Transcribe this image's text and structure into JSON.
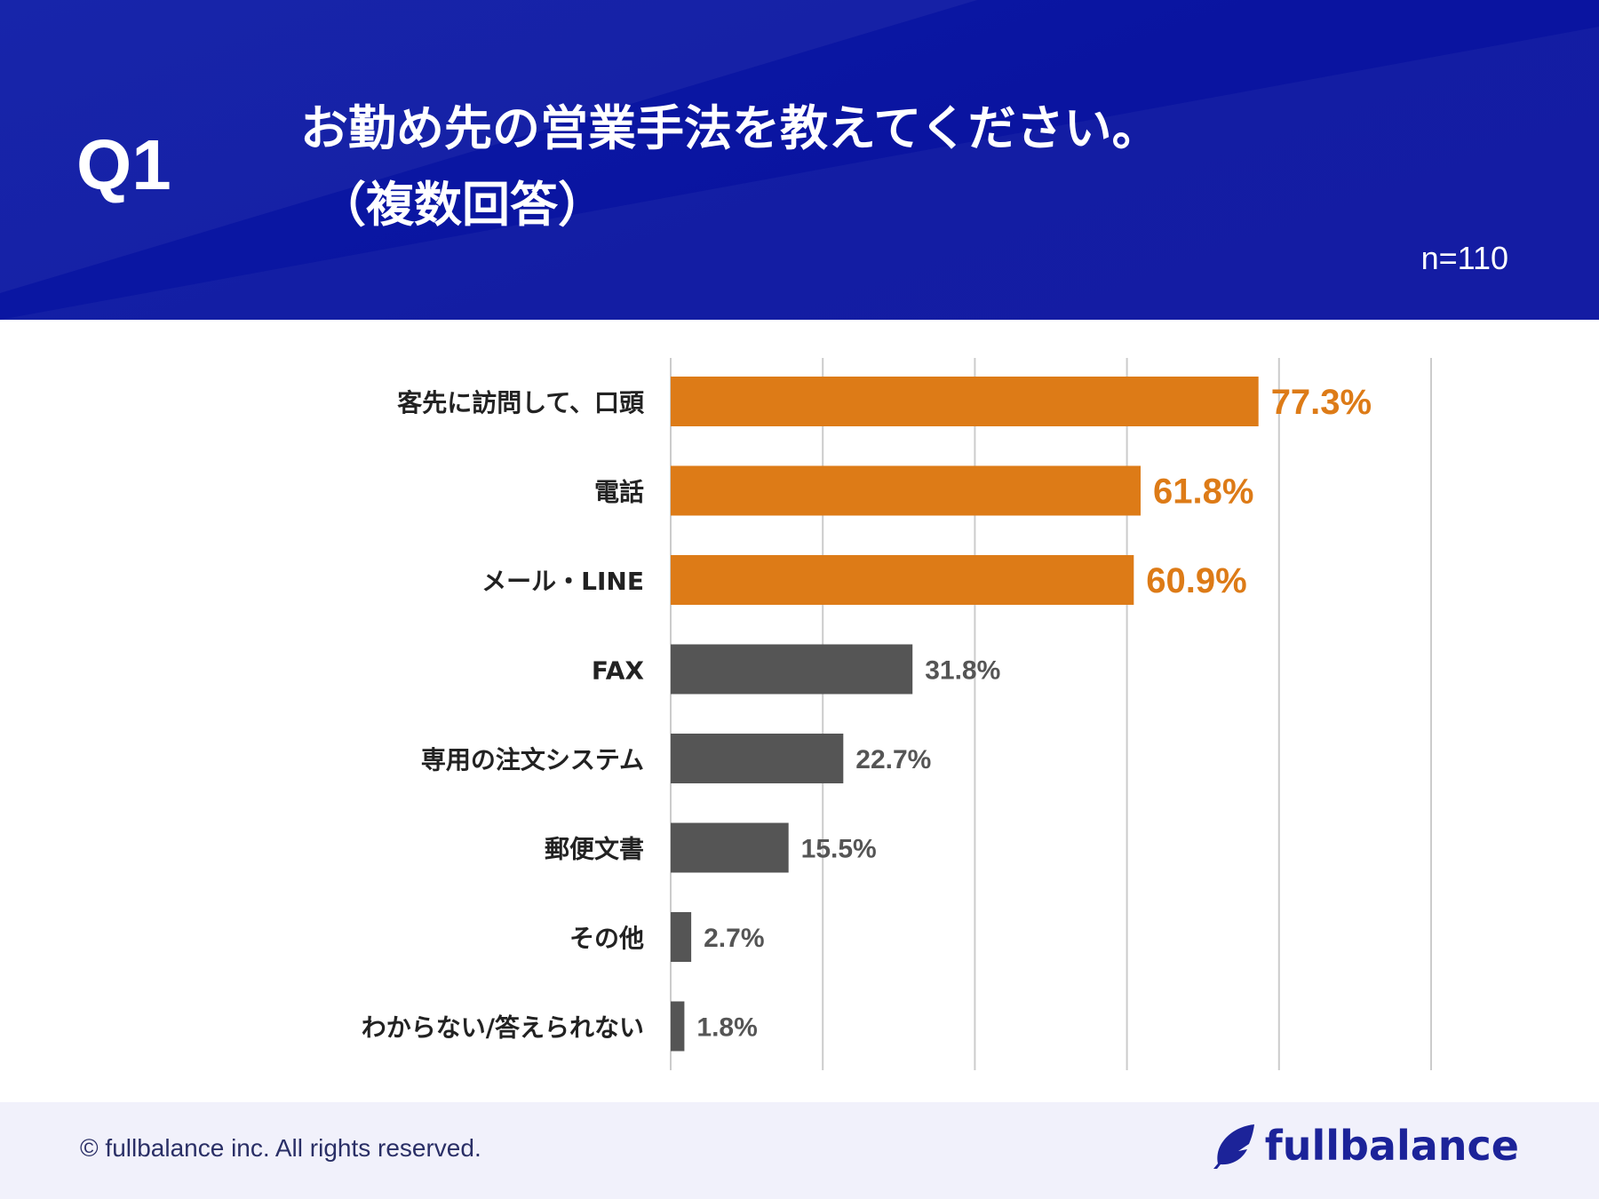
{
  "header": {
    "question_label": "Q1",
    "title_line1": "お勤め先の営業手法を教えてください。",
    "title_line2": "（複数回答）",
    "sample_size": "n=110"
  },
  "colors": {
    "header_bg": "#0b14a0",
    "highlight_bar": "#dd7b17",
    "normal_bar": "#555555",
    "gridline": "#cccccc",
    "category_text": "#222222"
  },
  "chart_data": {
    "type": "bar",
    "orientation": "horizontal",
    "title": "お勤め先の営業手法を教えてください。（複数回答）",
    "categories": [
      "客先に訪問して、口頭",
      "電話",
      "メール・LINE",
      "FAX",
      "専用の注文システム",
      "郵便文書",
      "その他",
      "わからない/答えられない"
    ],
    "values": [
      77.3,
      61.8,
      60.9,
      31.8,
      22.7,
      15.5,
      2.7,
      1.8
    ],
    "value_labels": [
      "77.3%",
      "61.8%",
      "60.9%",
      "31.8%",
      "22.7%",
      "15.5%",
      "2.7%",
      "1.8%"
    ],
    "highlight_top_n": 3,
    "xlim": [
      0,
      100
    ],
    "grid_step": 20,
    "unit": "%"
  },
  "footer": {
    "copyright": "© fullbalance inc. All rights reserved.",
    "brand_name": "fullbalance",
    "brand_icon": "feather-icon"
  }
}
